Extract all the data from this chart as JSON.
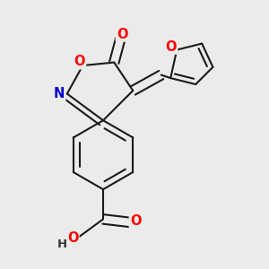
{
  "background_color": "#ebebeb",
  "bond_color": "#1a1a1a",
  "bond_width": 1.5,
  "atom_colors": {
    "O": "#ff0000",
    "N": "#0000cc",
    "H": "#333333"
  },
  "font_size": 10.5,
  "fig_width": 3.0,
  "fig_height": 3.0,
  "dpi": 100
}
